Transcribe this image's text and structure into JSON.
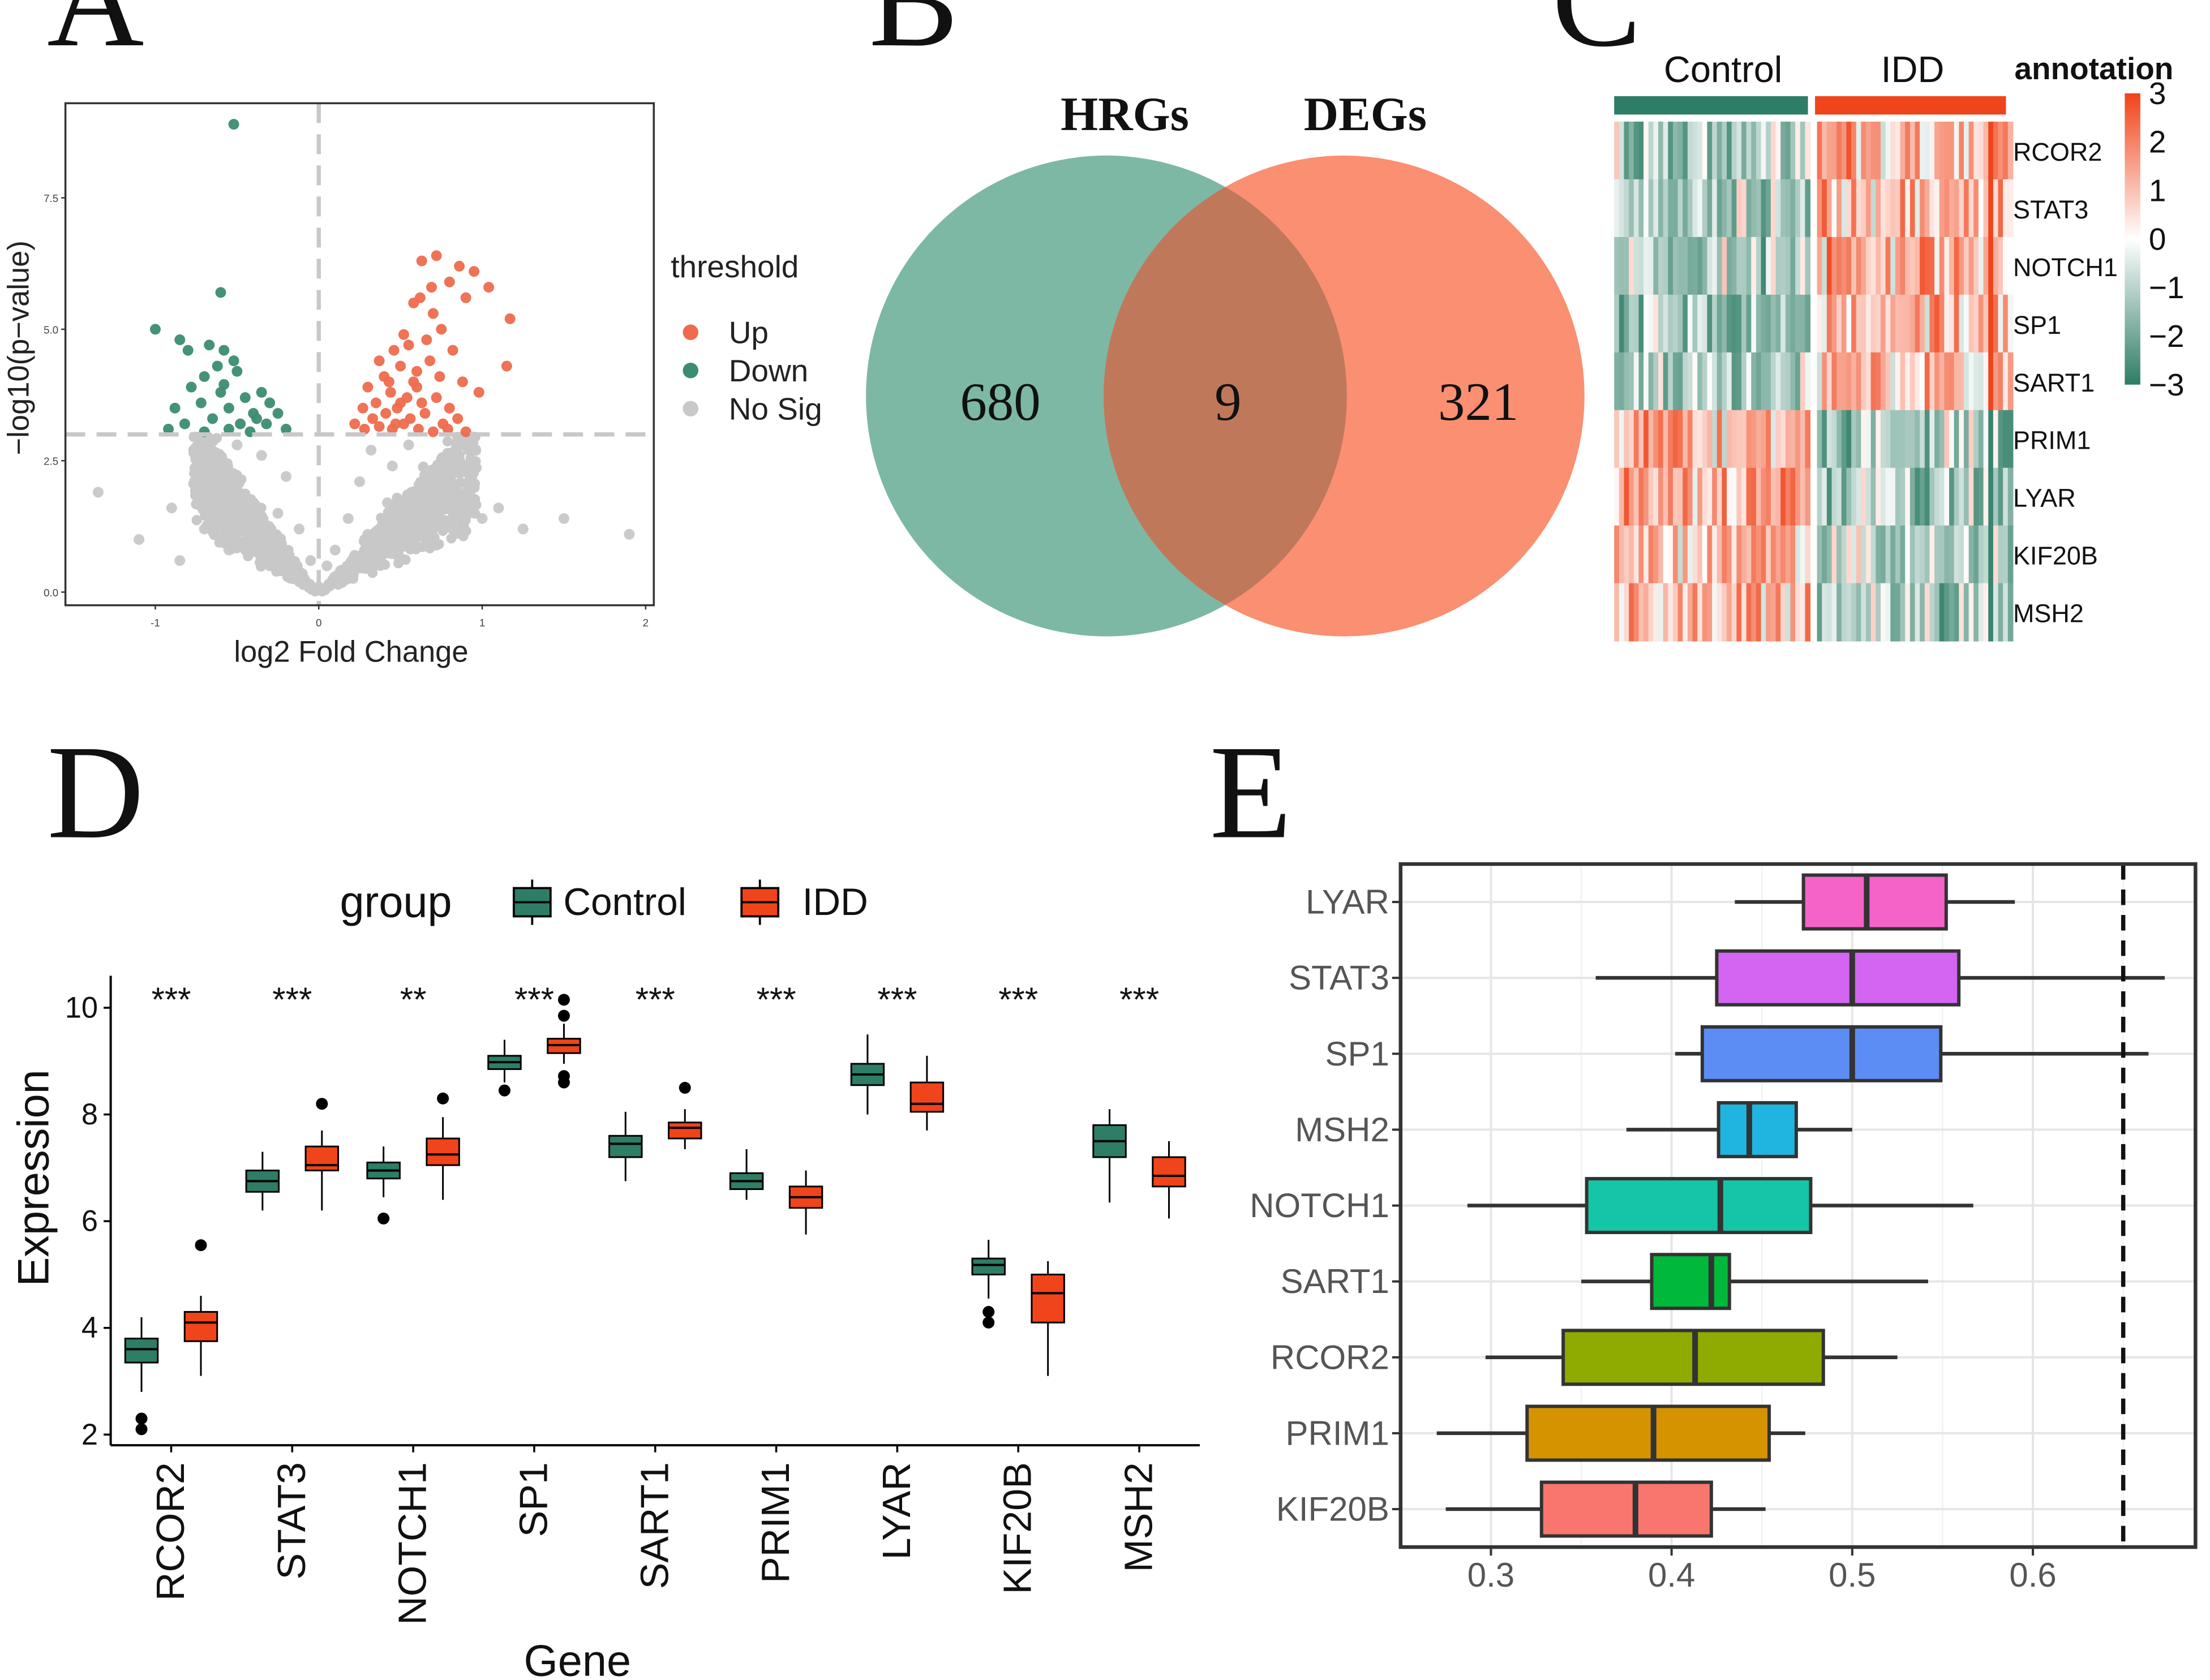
{
  "panel_letters": [
    "A",
    "B",
    "C",
    "D",
    "E"
  ],
  "colors": {
    "up": "#EE6B4D",
    "down": "#3A8C73",
    "nosig": "#C8C8C8",
    "control": "#2E7D66",
    "idd": "#F0441A",
    "venn_left": "#7DB8A4",
    "venn_right": "#FA8F72",
    "venn_overlap": "#C0785A"
  },
  "chart_data": [
    {
      "type": "scatter",
      "panel": "A",
      "title": "",
      "xlabel": "log2 Fold Change",
      "ylabel": "−log10(p−value)",
      "xlim": [
        -1.55,
        2.05
      ],
      "ylim": [
        -0.25,
        9.3
      ],
      "x_ticks": [
        -1,
        0,
        1,
        2
      ],
      "x_tick_labels": [
        "-1",
        "0",
        "1",
        "2"
      ],
      "y_ticks": [
        0,
        2.5,
        5,
        7.5
      ],
      "y_tick_labels": [
        "0.0",
        "2.5",
        "5.0",
        "7.5"
      ],
      "thresholds": {
        "x": 0,
        "y": 3.0
      },
      "legend": {
        "title": "threshold",
        "entries": [
          "Up",
          "Down",
          "No Sig"
        ],
        "position": "right"
      },
      "series": [
        {
          "name": "Up",
          "points": [
            [
              0.63,
              6.3
            ],
            [
              0.72,
              6.4
            ],
            [
              0.86,
              6.2
            ],
            [
              0.69,
              5.8
            ],
            [
              0.8,
              5.9
            ],
            [
              0.95,
              6.1
            ],
            [
              1.04,
              5.8
            ],
            [
              0.58,
              5.5
            ],
            [
              0.62,
              5.6
            ],
            [
              0.9,
              5.6
            ],
            [
              1.17,
              5.2
            ],
            [
              0.7,
              5.3
            ],
            [
              0.75,
              5.0
            ],
            [
              0.52,
              4.9
            ],
            [
              0.46,
              4.6
            ],
            [
              0.55,
              4.7
            ],
            [
              0.66,
              4.8
            ],
            [
              0.82,
              4.6
            ],
            [
              1.15,
              4.3
            ],
            [
              0.37,
              4.4
            ],
            [
              0.4,
              4.1
            ],
            [
              0.5,
              4.3
            ],
            [
              0.6,
              4.2
            ],
            [
              0.68,
              4.4
            ],
            [
              0.74,
              4.1
            ],
            [
              0.88,
              4.0
            ],
            [
              0.98,
              3.8
            ],
            [
              0.3,
              3.9
            ],
            [
              0.35,
              3.6
            ],
            [
              0.44,
              3.8
            ],
            [
              0.54,
              3.7
            ],
            [
              0.63,
              3.6
            ],
            [
              0.72,
              3.7
            ],
            [
              0.8,
              3.5
            ],
            [
              0.6,
              3.9
            ],
            [
              0.27,
              3.5
            ],
            [
              0.33,
              3.3
            ],
            [
              0.41,
              3.4
            ],
            [
              0.48,
              3.5
            ],
            [
              0.56,
              3.3
            ],
            [
              0.65,
              3.4
            ],
            [
              0.76,
              3.2
            ],
            [
              0.85,
              3.3
            ],
            [
              0.22,
              3.2
            ],
            [
              0.28,
              3.1
            ],
            [
              0.37,
              3.15
            ],
            [
              0.45,
              3.1
            ],
            [
              0.52,
              3.2
            ],
            [
              0.61,
              3.1
            ],
            [
              0.7,
              3.05
            ],
            [
              0.79,
              3.1
            ],
            [
              0.9,
              3.05
            ],
            [
              0.5,
              3.6
            ],
            [
              0.58,
              4.0
            ],
            [
              0.43,
              4.0
            ],
            [
              0.47,
              3.2
            ]
          ]
        },
        {
          "name": "Down",
          "points": [
            [
              -0.52,
              8.9
            ],
            [
              -1.0,
              5.0
            ],
            [
              -0.85,
              4.8
            ],
            [
              -0.6,
              5.7
            ],
            [
              -0.8,
              4.6
            ],
            [
              -0.67,
              4.7
            ],
            [
              -0.58,
              4.6
            ],
            [
              -0.52,
              4.4
            ],
            [
              -0.7,
              4.1
            ],
            [
              -0.62,
              4.3
            ],
            [
              -0.5,
              4.2
            ],
            [
              -0.78,
              3.9
            ],
            [
              -0.6,
              3.8
            ],
            [
              -0.45,
              3.7
            ],
            [
              -0.35,
              3.8
            ],
            [
              -0.3,
              3.6
            ],
            [
              -0.88,
              3.5
            ],
            [
              -0.72,
              3.6
            ],
            [
              -0.55,
              3.5
            ],
            [
              -0.4,
              3.4
            ],
            [
              -0.25,
              3.4
            ],
            [
              -0.82,
              3.2
            ],
            [
              -0.65,
              3.3
            ],
            [
              -0.48,
              3.2
            ],
            [
              -0.32,
              3.2
            ],
            [
              -0.2,
              3.1
            ],
            [
              -0.92,
              3.1
            ],
            [
              -0.7,
              3.05
            ],
            [
              -0.55,
              3.1
            ],
            [
              -0.42,
              3.05
            ],
            [
              -0.58,
              3.95
            ],
            [
              -0.38,
              3.3
            ]
          ]
        },
        {
          "name": "No Sig",
          "points": [
            [
              -1.35,
              1.9
            ],
            [
              -1.1,
              1.0
            ],
            [
              -0.9,
              1.6
            ],
            [
              -0.85,
              0.6
            ],
            [
              -0.7,
              1.2
            ],
            [
              -0.6,
              2.4
            ],
            [
              -0.55,
              0.8
            ],
            [
              -0.45,
              1.8
            ],
            [
              -0.4,
              1.1
            ],
            [
              -0.35,
              2.6
            ],
            [
              -0.3,
              0.5
            ],
            [
              -0.25,
              1.5
            ],
            [
              -0.2,
              2.2
            ],
            [
              -0.18,
              0.7
            ],
            [
              -0.12,
              1.2
            ],
            [
              -0.1,
              0.35
            ],
            [
              -0.05,
              0.6
            ],
            [
              0.0,
              0.1
            ],
            [
              0.05,
              0.5
            ],
            [
              0.1,
              0.8
            ],
            [
              0.12,
              0.3
            ],
            [
              0.18,
              1.4
            ],
            [
              0.22,
              0.7
            ],
            [
              0.25,
              2.1
            ],
            [
              0.3,
              1.1
            ],
            [
              0.32,
              2.7
            ],
            [
              0.38,
              0.6
            ],
            [
              0.42,
              1.7
            ],
            [
              0.45,
              2.4
            ],
            [
              0.5,
              1.0
            ],
            [
              0.55,
              2.8
            ],
            [
              0.6,
              1.5
            ],
            [
              0.65,
              2.2
            ],
            [
              0.7,
              0.9
            ],
            [
              0.75,
              1.8
            ],
            [
              0.8,
              2.6
            ],
            [
              0.85,
              1.3
            ],
            [
              0.9,
              2.3
            ],
            [
              1.0,
              1.4
            ],
            [
              1.1,
              1.6
            ],
            [
              1.25,
              1.2
            ],
            [
              1.5,
              1.4
            ],
            [
              1.9,
              1.1
            ],
            [
              -0.75,
              2.0
            ],
            [
              -0.5,
              2.8
            ],
            [
              0.95,
              2.0
            ]
          ]
        }
      ]
    },
    {
      "type": "venn",
      "panel": "B",
      "sets": [
        {
          "name": "HRGs",
          "only": "680"
        },
        {
          "name": "DEGs",
          "only": "321"
        }
      ],
      "overlap": "9"
    },
    {
      "type": "heatmap",
      "panel": "C",
      "group_labels": [
        "Control",
        "IDD"
      ],
      "rows": [
        "RCOR2",
        "STAT3",
        "NOTCH1",
        "SP1",
        "SART1",
        "PRIM1",
        "LYAR",
        "KIF20B",
        "MSH2"
      ],
      "n_control": 40,
      "n_idd": 40,
      "row_bias": [
        -0.9,
        -0.9,
        -0.9,
        -0.9,
        -0.7,
        0.9,
        0.9,
        0.8,
        0.9
      ],
      "legend": {
        "title": "annotation",
        "ticks": [
          3,
          2,
          1,
          0,
          -1,
          -2,
          -3
        ],
        "tick_labels": [
          "3",
          "2",
          "1",
          "0",
          "−1",
          "−2",
          "−3"
        ]
      }
    },
    {
      "type": "boxplot",
      "panel": "D",
      "xlabel": "Gene",
      "ylabel": "Expression",
      "ylim": [
        1.8,
        10.6
      ],
      "y_ticks": [
        2,
        4,
        6,
        8,
        10
      ],
      "y_tick_labels": [
        "2",
        "4",
        "6",
        "8",
        "10"
      ],
      "legend": {
        "title": "group",
        "entries": [
          "Control",
          "IDD"
        ],
        "position": "top"
      },
      "categories": [
        "RCOR2",
        "STAT3",
        "NOTCH1",
        "SP1",
        "SART1",
        "PRIM1",
        "LYAR",
        "KIF20B",
        "MSH2"
      ],
      "significance": [
        "***",
        "***",
        "**",
        "***",
        "***",
        "***",
        "***",
        "***",
        "***"
      ],
      "series": [
        {
          "name": "Control",
          "boxes": [
            {
              "min": 2.8,
              "q1": 3.35,
              "median": 3.6,
              "q3": 3.8,
              "max": 4.2,
              "outliers": [
                2.1,
                2.3
              ]
            },
            {
              "min": 6.2,
              "q1": 6.55,
              "median": 6.75,
              "q3": 6.95,
              "max": 7.3,
              "outliers": []
            },
            {
              "min": 6.45,
              "q1": 6.8,
              "median": 6.95,
              "q3": 7.1,
              "max": 7.4,
              "outliers": [
                6.05
              ]
            },
            {
              "min": 8.6,
              "q1": 8.85,
              "median": 8.98,
              "q3": 9.1,
              "max": 9.4,
              "outliers": [
                8.45
              ]
            },
            {
              "min": 6.75,
              "q1": 7.2,
              "median": 7.45,
              "q3": 7.6,
              "max": 8.05,
              "outliers": []
            },
            {
              "min": 6.4,
              "q1": 6.6,
              "median": 6.75,
              "q3": 6.9,
              "max": 7.35,
              "outliers": []
            },
            {
              "min": 8.0,
              "q1": 8.55,
              "median": 8.75,
              "q3": 8.95,
              "max": 9.5,
              "outliers": []
            },
            {
              "min": 4.55,
              "q1": 5.0,
              "median": 5.18,
              "q3": 5.3,
              "max": 5.65,
              "outliers": [
                4.1,
                4.3
              ]
            },
            {
              "min": 6.35,
              "q1": 7.2,
              "median": 7.5,
              "q3": 7.8,
              "max": 8.1,
              "outliers": []
            }
          ]
        },
        {
          "name": "IDD",
          "boxes": [
            {
              "min": 3.1,
              "q1": 3.75,
              "median": 4.1,
              "q3": 4.3,
              "max": 4.6,
              "outliers": [
                5.55
              ]
            },
            {
              "min": 6.2,
              "q1": 6.95,
              "median": 7.05,
              "q3": 7.4,
              "max": 7.7,
              "outliers": [
                8.2
              ]
            },
            {
              "min": 6.4,
              "q1": 7.05,
              "median": 7.25,
              "q3": 7.55,
              "max": 7.95,
              "outliers": [
                8.3
              ]
            },
            {
              "min": 8.95,
              "q1": 9.15,
              "median": 9.3,
              "q3": 9.42,
              "max": 9.7,
              "outliers": [
                8.6,
                8.72,
                9.85,
                10.15
              ]
            },
            {
              "min": 7.35,
              "q1": 7.55,
              "median": 7.75,
              "q3": 7.85,
              "max": 8.1,
              "outliers": [
                8.5
              ]
            },
            {
              "min": 5.75,
              "q1": 6.25,
              "median": 6.45,
              "q3": 6.65,
              "max": 6.95,
              "outliers": []
            },
            {
              "min": 7.7,
              "q1": 8.05,
              "median": 8.2,
              "q3": 8.6,
              "max": 9.1,
              "outliers": []
            },
            {
              "min": 3.1,
              "q1": 4.1,
              "median": 4.65,
              "q3": 5.0,
              "max": 5.25,
              "outliers": []
            },
            {
              "min": 6.05,
              "q1": 6.65,
              "median": 6.85,
              "q3": 7.2,
              "max": 7.5,
              "outliers": []
            }
          ]
        }
      ]
    },
    {
      "type": "boxplot",
      "panel": "E",
      "orientation": "horizontal",
      "xlim": [
        0.25,
        0.69
      ],
      "x_ticks": [
        0.3,
        0.4,
        0.5,
        0.6
      ],
      "x_tick_labels": [
        "0.3",
        "0.4",
        "0.5",
        "0.6"
      ],
      "reference_line": 0.65,
      "categories": [
        "LYAR",
        "STAT3",
        "SP1",
        "MSH2",
        "NOTCH1",
        "SART1",
        "RCOR2",
        "PRIM1",
        "KIF20B"
      ],
      "box_colors": [
        "#F563C8",
        "#D464F2",
        "#5B8DF5",
        "#1FB5E0",
        "#14C5A8",
        "#00B83A",
        "#8FAA00",
        "#D69300",
        "#F8766D"
      ],
      "boxes": [
        {
          "min": 0.435,
          "q1": 0.473,
          "median": 0.508,
          "q3": 0.552,
          "max": 0.59
        },
        {
          "min": 0.358,
          "q1": 0.425,
          "median": 0.5,
          "q3": 0.559,
          "max": 0.673
        },
        {
          "min": 0.402,
          "q1": 0.417,
          "median": 0.5,
          "q3": 0.549,
          "max": 0.664
        },
        {
          "min": 0.375,
          "q1": 0.426,
          "median": 0.443,
          "q3": 0.469,
          "max": 0.5
        },
        {
          "min": 0.287,
          "q1": 0.353,
          "median": 0.427,
          "q3": 0.477,
          "max": 0.567
        },
        {
          "min": 0.35,
          "q1": 0.389,
          "median": 0.422,
          "q3": 0.432,
          "max": 0.542
        },
        {
          "min": 0.297,
          "q1": 0.34,
          "median": 0.413,
          "q3": 0.484,
          "max": 0.525
        },
        {
          "min": 0.27,
          "q1": 0.32,
          "median": 0.39,
          "q3": 0.454,
          "max": 0.474
        },
        {
          "min": 0.275,
          "q1": 0.328,
          "median": 0.38,
          "q3": 0.422,
          "max": 0.452
        }
      ]
    }
  ]
}
